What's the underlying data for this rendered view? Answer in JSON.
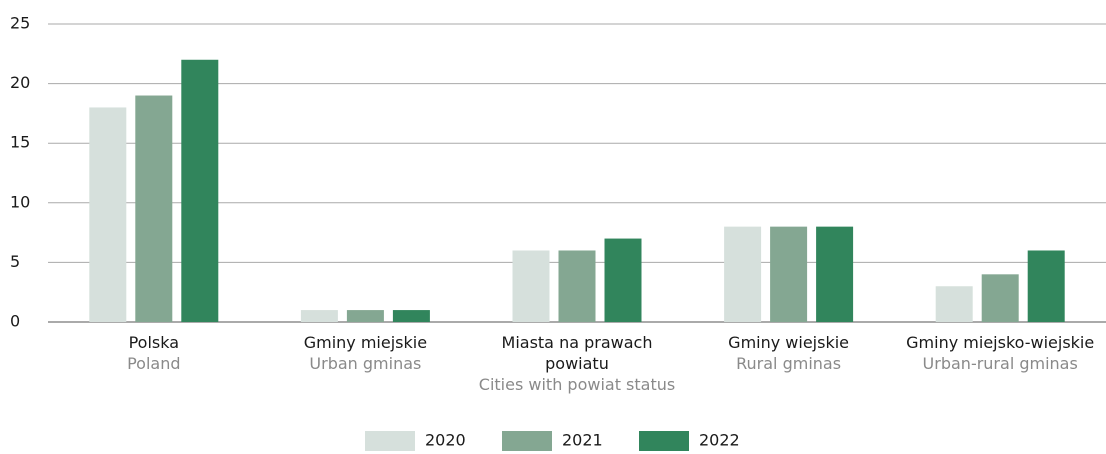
{
  "chart_data": {
    "type": "bar",
    "categories": [
      "Polska",
      "Gminy miejskie",
      "Miasta na prawach powiatu",
      "Gminy wiejskie",
      "Gminy miejsko-wiejskie"
    ],
    "category_translations": [
      "Poland",
      "Urban gminas",
      "Cities with powiat status",
      "Rural gminas",
      "Urban-rural gminas"
    ],
    "series": [
      {
        "name": "2020",
        "color": "#d6e0dc",
        "values": [
          18,
          1,
          6,
          8,
          3
        ]
      },
      {
        "name": "2021",
        "color": "#84a792",
        "values": [
          19,
          1,
          6,
          8,
          4
        ]
      },
      {
        "name": "2022",
        "color": "#31855c",
        "values": [
          22,
          1,
          7,
          8,
          6
        ]
      }
    ],
    "ylim": [
      0,
      25
    ],
    "yticks": [
      0,
      5,
      10,
      15,
      20,
      25
    ],
    "grid": true,
    "legend": "bottom"
  }
}
